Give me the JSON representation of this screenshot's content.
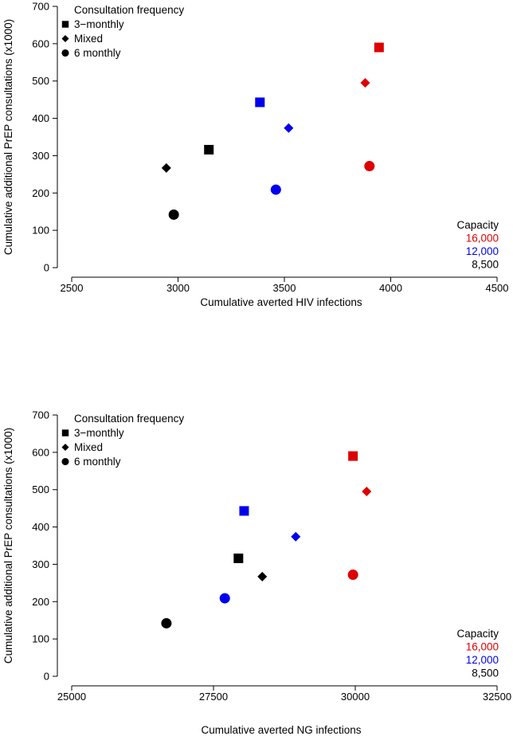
{
  "colors": {
    "16,000": "#dd0000",
    "12,000": "#0000ee",
    "8,500": "#000000"
  },
  "chart_data": [
    {
      "type": "scatter",
      "xlabel": "Cumulative averted HIV infections",
      "ylabel": "Cumulative additional PrEP consultations (x1000)",
      "xlim": [
        2500,
        4500
      ],
      "ylim": [
        0,
        700
      ],
      "x_ticks": [
        "2500",
        "3000",
        "3500",
        "4000",
        "4500"
      ],
      "y_ticks": [
        "0",
        "100",
        "200",
        "300",
        "400",
        "500",
        "600",
        "700"
      ],
      "legend_shape": {
        "title": "Consultation frequency",
        "entries": [
          {
            "label": "3−monthly",
            "shape": "square"
          },
          {
            "label": "Mixed",
            "shape": "diamond"
          },
          {
            "label": "6 monthly",
            "shape": "circle"
          }
        ]
      },
      "legend_capacity": {
        "title": "Capacity",
        "entries": [
          {
            "label": "16,000",
            "color": "#dd0000"
          },
          {
            "label": "12,000",
            "color": "#0000ee"
          },
          {
            "label": "8,500",
            "color": "#000000"
          }
        ]
      },
      "points": [
        {
          "frequency": "3-monthly",
          "shape": "square",
          "capacity": "16,000",
          "x": 3945,
          "y": 590
        },
        {
          "frequency": "Mixed",
          "shape": "diamond",
          "capacity": "16,000",
          "x": 3880,
          "y": 495
        },
        {
          "frequency": "6 monthly",
          "shape": "circle",
          "capacity": "16,000",
          "x": 3900,
          "y": 272
        },
        {
          "frequency": "3-monthly",
          "shape": "square",
          "capacity": "12,000",
          "x": 3385,
          "y": 443
        },
        {
          "frequency": "Mixed",
          "shape": "diamond",
          "capacity": "12,000",
          "x": 3520,
          "y": 374
        },
        {
          "frequency": "6 monthly",
          "shape": "circle",
          "capacity": "12,000",
          "x": 3460,
          "y": 209
        },
        {
          "frequency": "3-monthly",
          "shape": "square",
          "capacity": "8,500",
          "x": 3145,
          "y": 316
        },
        {
          "frequency": "Mixed",
          "shape": "diamond",
          "capacity": "8,500",
          "x": 2945,
          "y": 267
        },
        {
          "frequency": "6 monthly",
          "shape": "circle",
          "capacity": "8,500",
          "x": 2980,
          "y": 142
        }
      ]
    },
    {
      "type": "scatter",
      "xlabel": "Cumulative averted NG infections",
      "ylabel": "Cumulative additional PrEP consultations (x1000)",
      "xlim": [
        25000,
        32500
      ],
      "ylim": [
        0,
        700
      ],
      "x_ticks": [
        "25000",
        "27500",
        "30000",
        "32500"
      ],
      "y_ticks": [
        "0",
        "100",
        "200",
        "300",
        "400",
        "500",
        "600",
        "700"
      ],
      "legend_shape": {
        "title": "Consultation frequency",
        "entries": [
          {
            "label": "3−monthly",
            "shape": "square"
          },
          {
            "label": "Mixed",
            "shape": "diamond"
          },
          {
            "label": "6 monthly",
            "shape": "circle"
          }
        ]
      },
      "legend_capacity": {
        "title": "Capacity",
        "entries": [
          {
            "label": "16,000",
            "color": "#dd0000"
          },
          {
            "label": "12,000",
            "color": "#0000ee"
          },
          {
            "label": "8,500",
            "color": "#000000"
          }
        ]
      },
      "points": [
        {
          "frequency": "3-monthly",
          "shape": "square",
          "capacity": "16,000",
          "x": 29960,
          "y": 590
        },
        {
          "frequency": "Mixed",
          "shape": "diamond",
          "capacity": "16,000",
          "x": 30200,
          "y": 495
        },
        {
          "frequency": "6 monthly",
          "shape": "circle",
          "capacity": "16,000",
          "x": 29960,
          "y": 272
        },
        {
          "frequency": "3-monthly",
          "shape": "square",
          "capacity": "12,000",
          "x": 28040,
          "y": 443
        },
        {
          "frequency": "Mixed",
          "shape": "diamond",
          "capacity": "12,000",
          "x": 28950,
          "y": 374
        },
        {
          "frequency": "6 monthly",
          "shape": "circle",
          "capacity": "12,000",
          "x": 27700,
          "y": 209
        },
        {
          "frequency": "3-monthly",
          "shape": "square",
          "capacity": "8,500",
          "x": 27940,
          "y": 316
        },
        {
          "frequency": "Mixed",
          "shape": "diamond",
          "capacity": "8,500",
          "x": 28360,
          "y": 267
        },
        {
          "frequency": "6 monthly",
          "shape": "circle",
          "capacity": "8,500",
          "x": 26670,
          "y": 142
        }
      ]
    }
  ]
}
